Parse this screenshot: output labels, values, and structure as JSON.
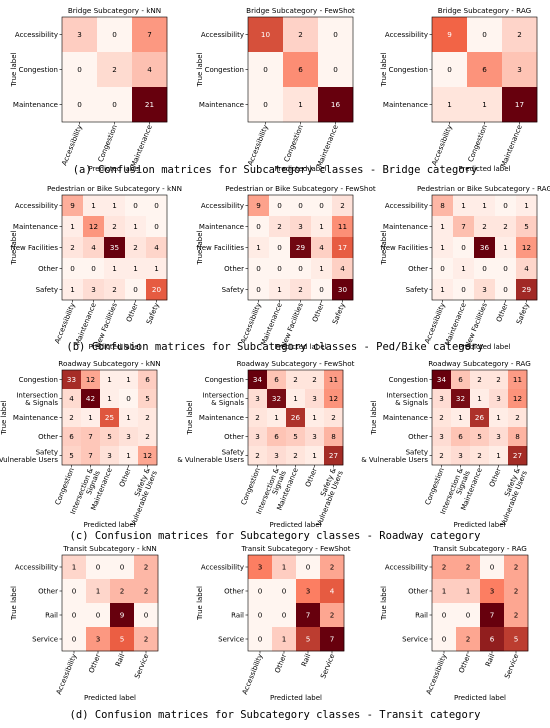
{
  "sections": [
    {
      "caption": "(a) Confusion matrices for Subcategory classes - Bridge category",
      "labels": [
        "Accessibility",
        "Congestion",
        "Maintenance"
      ],
      "panels": [
        {
          "title": "Bridge Subcategory - kNN",
          "matrix": [
            [
              3,
              0,
              7
            ],
            [
              0,
              2,
              4
            ],
            [
              0,
              0,
              21
            ]
          ]
        },
        {
          "title": "Bridge Subcategory - FewShot",
          "matrix": [
            [
              10,
              2,
              0
            ],
            [
              0,
              6,
              0
            ],
            [
              0,
              1,
              16
            ]
          ]
        },
        {
          "title": "Bridge Subcategory - RAG",
          "matrix": [
            [
              9,
              0,
              2
            ],
            [
              0,
              6,
              3
            ],
            [
              1,
              1,
              17
            ]
          ]
        }
      ]
    },
    {
      "caption": "(b) Confusion matrices for Subcategory classes - Ped/Bike category",
      "labels": [
        "Accessibility",
        "Maintenance",
        "New Facilities",
        "Other",
        "Safety"
      ],
      "panels": [
        {
          "title": "Pedestrian or Bike Subcategory - kNN",
          "matrix": [
            [
              9,
              1,
              1,
              0,
              0
            ],
            [
              1,
              12,
              2,
              1,
              0
            ],
            [
              2,
              4,
              35,
              2,
              4
            ],
            [
              0,
              0,
              1,
              1,
              1
            ],
            [
              1,
              3,
              2,
              0,
              20
            ]
          ]
        },
        {
          "title": "Pedestrian or Bike Subcategory - FewShot",
          "matrix": [
            [
              9,
              0,
              0,
              0,
              2
            ],
            [
              0,
              2,
              3,
              1,
              11
            ],
            [
              1,
              0,
              29,
              4,
              17
            ],
            [
              0,
              0,
              0,
              1,
              4
            ],
            [
              0,
              1,
              2,
              0,
              30
            ]
          ]
        },
        {
          "title": "Pedestrian or Bike Subcategory - RAG",
          "matrix": [
            [
              8,
              1,
              1,
              0,
              1
            ],
            [
              1,
              7,
              2,
              2,
              5
            ],
            [
              1,
              0,
              36,
              1,
              12
            ],
            [
              0,
              1,
              0,
              0,
              4
            ],
            [
              1,
              0,
              3,
              0,
              29
            ]
          ]
        }
      ]
    },
    {
      "caption": "(c) Confusion matrices for Subcategory classes - Roadway category",
      "labels": [
        "Congestion",
        "Intersection & Signals",
        "Maintenance",
        "Other",
        "Safety & Vulnerable Users"
      ],
      "panels": [
        {
          "title": "Roadway Subcategory - kNN",
          "matrix": [
            [
              33,
              12,
              1,
              1,
              6
            ],
            [
              4,
              42,
              1,
              0,
              5
            ],
            [
              2,
              1,
              25,
              1,
              2
            ],
            [
              6,
              7,
              5,
              3,
              2
            ],
            [
              5,
              7,
              3,
              1,
              12
            ]
          ]
        },
        {
          "title": "Roadway Subcategory - FewShot",
          "matrix": [
            [
              34,
              6,
              2,
              2,
              11
            ],
            [
              3,
              32,
              1,
              3,
              12
            ],
            [
              2,
              1,
              26,
              1,
              2
            ],
            [
              3,
              6,
              5,
              3,
              8
            ],
            [
              2,
              3,
              2,
              1,
              27
            ]
          ]
        },
        {
          "title": "Roadway Subcategory - RAG",
          "matrix": [
            [
              34,
              6,
              2,
              2,
              11
            ],
            [
              3,
              32,
              1,
              3,
              12
            ],
            [
              2,
              1,
              26,
              1,
              2
            ],
            [
              3,
              6,
              5,
              3,
              8
            ],
            [
              2,
              3,
              2,
              1,
              27
            ]
          ]
        }
      ]
    },
    {
      "caption": "(d) Confusion matrices for Subcategory classes - Transit category",
      "labels": [
        "Accessibility",
        "Other",
        "Rail",
        "Service"
      ],
      "panels": [
        {
          "title": "Transit Subcategory - kNN",
          "matrix": [
            [
              1,
              0,
              0,
              2
            ],
            [
              0,
              1,
              2,
              2
            ],
            [
              0,
              0,
              9,
              0
            ],
            [
              0,
              3,
              5,
              2
            ]
          ]
        },
        {
          "title": "Transit Subcategory - FewShot",
          "matrix": [
            [
              3,
              1,
              0,
              2
            ],
            [
              0,
              0,
              3,
              4
            ],
            [
              0,
              0,
              7,
              2
            ],
            [
              0,
              1,
              5,
              7
            ]
          ]
        },
        {
          "title": "Transit Subcategory - RAG",
          "matrix": [
            [
              2,
              2,
              0,
              2
            ],
            [
              1,
              1,
              3,
              2
            ],
            [
              0,
              0,
              7,
              2
            ],
            [
              0,
              2,
              6,
              5
            ]
          ]
        }
      ]
    }
  ],
  "axis": {
    "xlabel": "Predicted label",
    "ylabel": "True label"
  },
  "colormap": {
    "name": "Reds",
    "light": "#fff5f0",
    "mid": "#fb6a4a",
    "dark": "#67000d"
  },
  "chart_data": {
    "type": "heatmap",
    "xlabel": "Predicted label",
    "ylabel": "True label",
    "charts": [
      {
        "title": "Bridge Subcategory - kNN",
        "categories": [
          "Accessibility",
          "Congestion",
          "Maintenance"
        ],
        "matrix": [
          [
            3,
            0,
            7
          ],
          [
            0,
            2,
            4
          ],
          [
            0,
            0,
            21
          ]
        ]
      },
      {
        "title": "Bridge Subcategory - FewShot",
        "categories": [
          "Accessibility",
          "Congestion",
          "Maintenance"
        ],
        "matrix": [
          [
            10,
            2,
            0
          ],
          [
            0,
            6,
            0
          ],
          [
            0,
            1,
            16
          ]
        ]
      },
      {
        "title": "Bridge Subcategory - RAG",
        "categories": [
          "Accessibility",
          "Congestion",
          "Maintenance"
        ],
        "matrix": [
          [
            9,
            0,
            2
          ],
          [
            0,
            6,
            3
          ],
          [
            1,
            1,
            17
          ]
        ]
      },
      {
        "title": "Pedestrian or Bike Subcategory - kNN",
        "categories": [
          "Accessibility",
          "Maintenance",
          "New Facilities",
          "Other",
          "Safety"
        ],
        "matrix": [
          [
            9,
            1,
            1,
            0,
            0
          ],
          [
            1,
            12,
            2,
            1,
            0
          ],
          [
            2,
            4,
            35,
            2,
            4
          ],
          [
            0,
            0,
            1,
            1,
            1
          ],
          [
            1,
            3,
            2,
            0,
            20
          ]
        ]
      },
      {
        "title": "Pedestrian or Bike Subcategory - FewShot",
        "categories": [
          "Accessibility",
          "Maintenance",
          "New Facilities",
          "Other",
          "Safety"
        ],
        "matrix": [
          [
            9,
            0,
            0,
            0,
            2
          ],
          [
            0,
            2,
            3,
            1,
            11
          ],
          [
            1,
            0,
            29,
            4,
            17
          ],
          [
            0,
            0,
            0,
            1,
            4
          ],
          [
            0,
            1,
            2,
            0,
            30
          ]
        ]
      },
      {
        "title": "Pedestrian or Bike Subcategory - RAG",
        "categories": [
          "Accessibility",
          "Maintenance",
          "New Facilities",
          "Other",
          "Safety"
        ],
        "matrix": [
          [
            8,
            1,
            1,
            0,
            1
          ],
          [
            1,
            7,
            2,
            2,
            5
          ],
          [
            1,
            0,
            36,
            1,
            12
          ],
          [
            0,
            1,
            0,
            0,
            4
          ],
          [
            1,
            0,
            3,
            0,
            29
          ]
        ]
      },
      {
        "title": "Roadway Subcategory - kNN",
        "categories": [
          "Congestion",
          "Intersection & Signals",
          "Maintenance",
          "Other",
          "Safety & Vulnerable Users"
        ],
        "matrix": [
          [
            33,
            12,
            1,
            1,
            6
          ],
          [
            4,
            42,
            1,
            0,
            5
          ],
          [
            2,
            1,
            25,
            1,
            2
          ],
          [
            6,
            7,
            5,
            3,
            2
          ],
          [
            5,
            7,
            3,
            1,
            12
          ]
        ]
      },
      {
        "title": "Roadway Subcategory - FewShot",
        "categories": [
          "Congestion",
          "Intersection & Signals",
          "Maintenance",
          "Other",
          "Safety & Vulnerable Users"
        ],
        "matrix": [
          [
            34,
            6,
            2,
            2,
            11
          ],
          [
            3,
            32,
            1,
            3,
            12
          ],
          [
            2,
            1,
            26,
            1,
            2
          ],
          [
            3,
            6,
            5,
            3,
            8
          ],
          [
            2,
            3,
            2,
            1,
            27
          ]
        ]
      },
      {
        "title": "Roadway Subcategory - RAG",
        "categories": [
          "Congestion",
          "Intersection & Signals",
          "Maintenance",
          "Other",
          "Safety & Vulnerable Users"
        ],
        "matrix": [
          [
            34,
            6,
            2,
            2,
            11
          ],
          [
            3,
            32,
            1,
            3,
            12
          ],
          [
            2,
            1,
            26,
            1,
            2
          ],
          [
            3,
            6,
            5,
            3,
            8
          ],
          [
            2,
            3,
            2,
            1,
            27
          ]
        ]
      },
      {
        "title": "Transit Subcategory - kNN",
        "categories": [
          "Accessibility",
          "Other",
          "Rail",
          "Service"
        ],
        "matrix": [
          [
            1,
            0,
            0,
            2
          ],
          [
            0,
            1,
            2,
            2
          ],
          [
            0,
            0,
            9,
            0
          ],
          [
            0,
            3,
            5,
            2
          ]
        ]
      },
      {
        "title": "Transit Subcategory - FewShot",
        "categories": [
          "Accessibility",
          "Other",
          "Rail",
          "Service"
        ],
        "matrix": [
          [
            3,
            1,
            0,
            2
          ],
          [
            0,
            0,
            3,
            4
          ],
          [
            0,
            0,
            7,
            2
          ],
          [
            0,
            1,
            5,
            7
          ]
        ]
      },
      {
        "title": "Transit Subcategory - RAG",
        "categories": [
          "Accessibility",
          "Other",
          "Rail",
          "Service"
        ],
        "matrix": [
          [
            2,
            2,
            0,
            2
          ],
          [
            1,
            1,
            3,
            2
          ],
          [
            0,
            0,
            7,
            2
          ],
          [
            0,
            2,
            6,
            5
          ]
        ]
      }
    ]
  }
}
